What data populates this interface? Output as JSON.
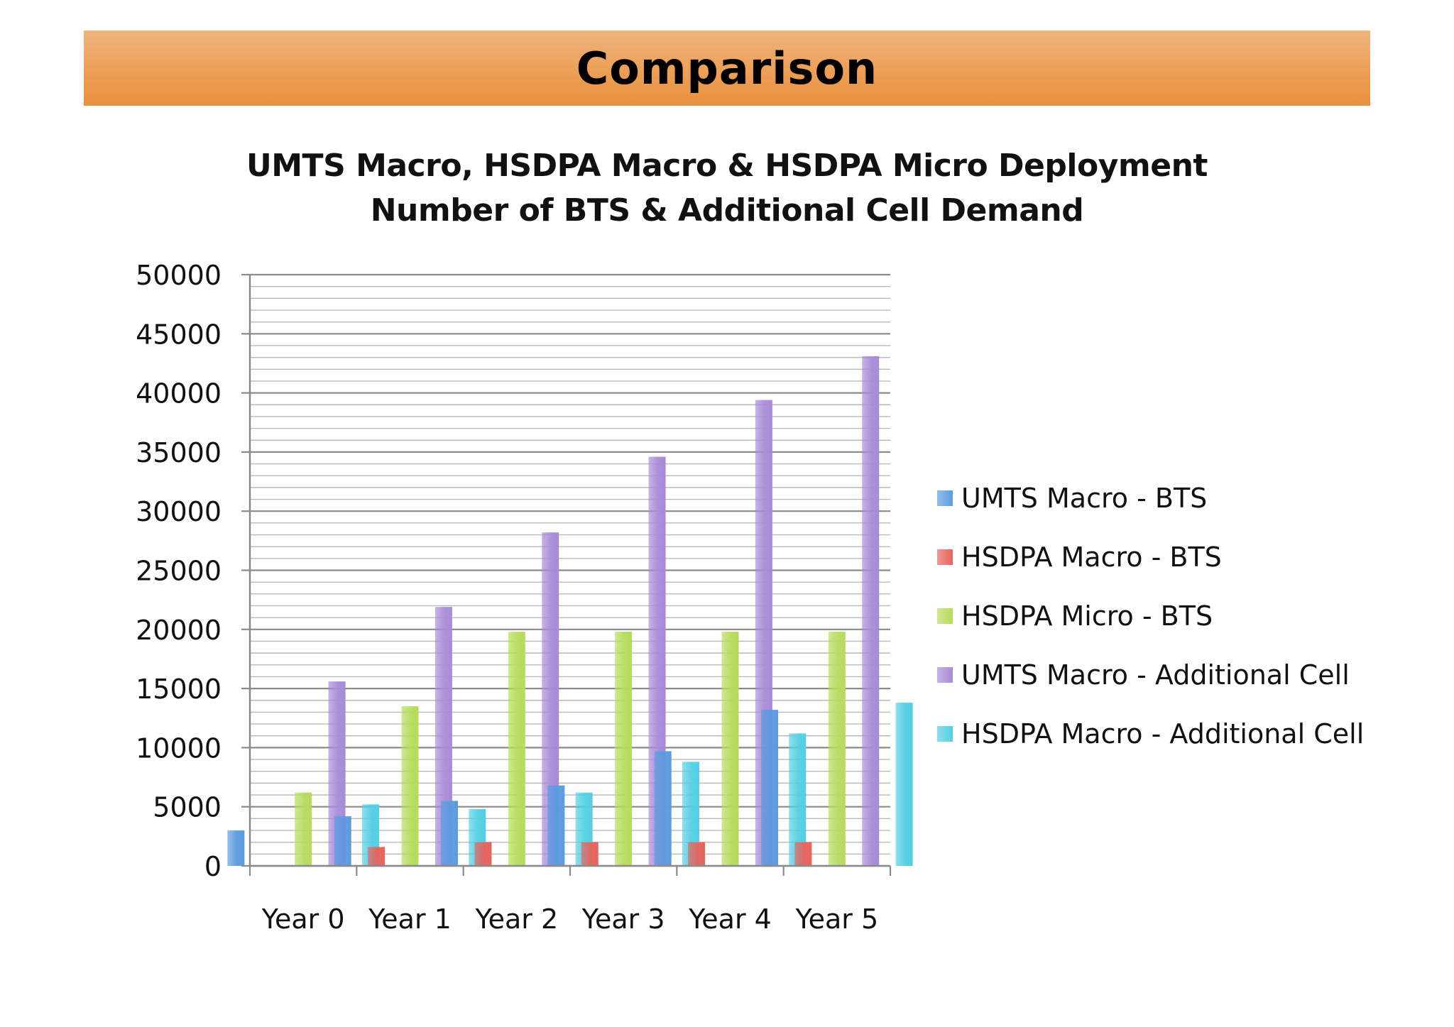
{
  "header": {
    "title": "Comparison"
  },
  "chart_data": {
    "type": "bar",
    "title_line1": "UMTS Macro, HSDPA Macro & HSDPA Micro Deployment",
    "title_line2": "Number of BTS & Additional Cell Demand",
    "categories": [
      "Year 0",
      "Year 1",
      "Year 2",
      "Year 3",
      "Year 4",
      "Year 5"
    ],
    "ylim": [
      0,
      50000
    ],
    "yticks": [
      "0",
      "5000",
      "10000",
      "15000",
      "20000",
      "25000",
      "30000",
      "35000",
      "40000",
      "45000",
      "50000"
    ],
    "grid": true,
    "legend_position": "right",
    "series": [
      {
        "name": "UMTS Macro - BTS",
        "color": "#5b9be0",
        "values": [
          3000,
          4200,
          5500,
          6800,
          9700,
          13200
        ]
      },
      {
        "name": "HSDPA Macro - BTS",
        "color": "#e8635c",
        "values": [
          0,
          1600,
          2000,
          2000,
          2000,
          2000
        ]
      },
      {
        "name": "HSDPA Micro - BTS",
        "color": "#b5dc5a",
        "values": [
          6200,
          13500,
          19800,
          19800,
          19800,
          19800
        ]
      },
      {
        "name": "UMTS Macro - Additional Cell",
        "color": "#a98ad8",
        "values": [
          15600,
          21900,
          28200,
          34600,
          39400,
          43100
        ]
      },
      {
        "name": "HSDPA Macro - Additional Cell",
        "color": "#52cfe4",
        "values": [
          5200,
          4800,
          6200,
          8800,
          11200,
          13800
        ]
      }
    ]
  }
}
